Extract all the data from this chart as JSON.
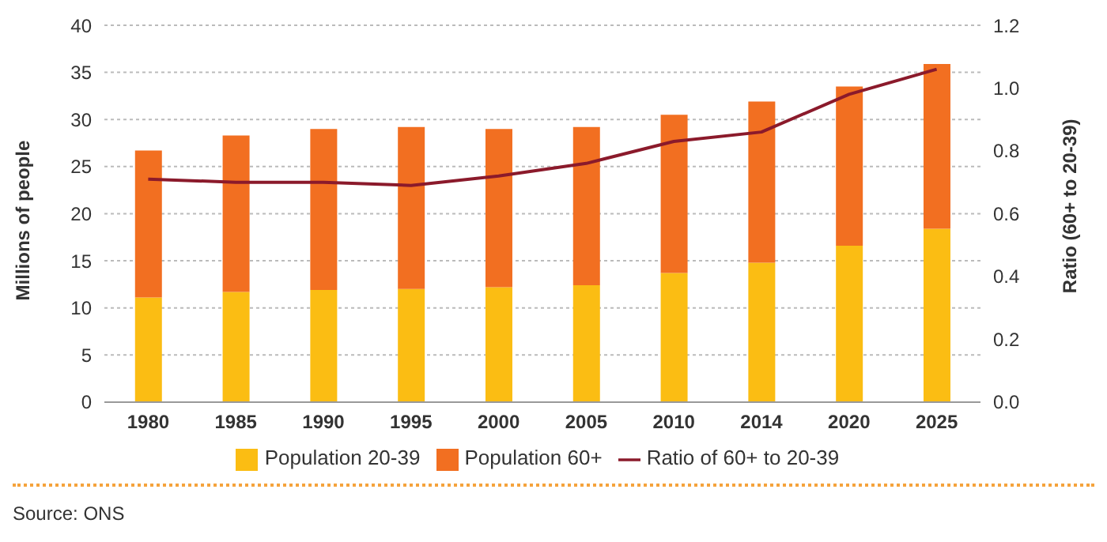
{
  "chart_data": {
    "type": "bar",
    "stacked": true,
    "categories": [
      "1980",
      "1985",
      "1990",
      "1995",
      "2000",
      "2005",
      "2010",
      "2014",
      "2020",
      "2025"
    ],
    "series": [
      {
        "name": "Population 20-39",
        "color": "#fbbd13",
        "values": [
          11.1,
          11.7,
          11.9,
          12.0,
          12.2,
          12.4,
          13.7,
          14.8,
          16.6,
          18.4
        ]
      },
      {
        "name": "Population 60+",
        "color": "#f26f21",
        "values": [
          15.6,
          16.6,
          17.1,
          17.2,
          16.8,
          16.8,
          16.8,
          17.1,
          16.9,
          17.5
        ]
      },
      {
        "name": "Ratio of 60+ to 20-39",
        "type": "line",
        "axis": "y2",
        "color": "#8b1a2b",
        "values": [
          0.71,
          0.7,
          0.7,
          0.69,
          0.72,
          0.76,
          0.83,
          0.86,
          0.98,
          1.06
        ]
      }
    ],
    "ylabel": "Millions of people",
    "y2label": "Ratio (60+ to 20-39)",
    "ylim": [
      0,
      40
    ],
    "yticks": [
      0,
      5,
      10,
      15,
      20,
      25,
      30,
      35,
      40
    ],
    "y2lim": [
      0,
      1.2
    ],
    "y2ticks": [
      {
        "value": 0,
        "label": "0.0"
      },
      0.2,
      0.4,
      0.6,
      0.8,
      {
        "value": 1,
        "label": "1.0"
      },
      1.2
    ],
    "grid": "y",
    "legend": "bottom",
    "marker": "none",
    "annotations": [
      "Source: ONS"
    ]
  }
}
